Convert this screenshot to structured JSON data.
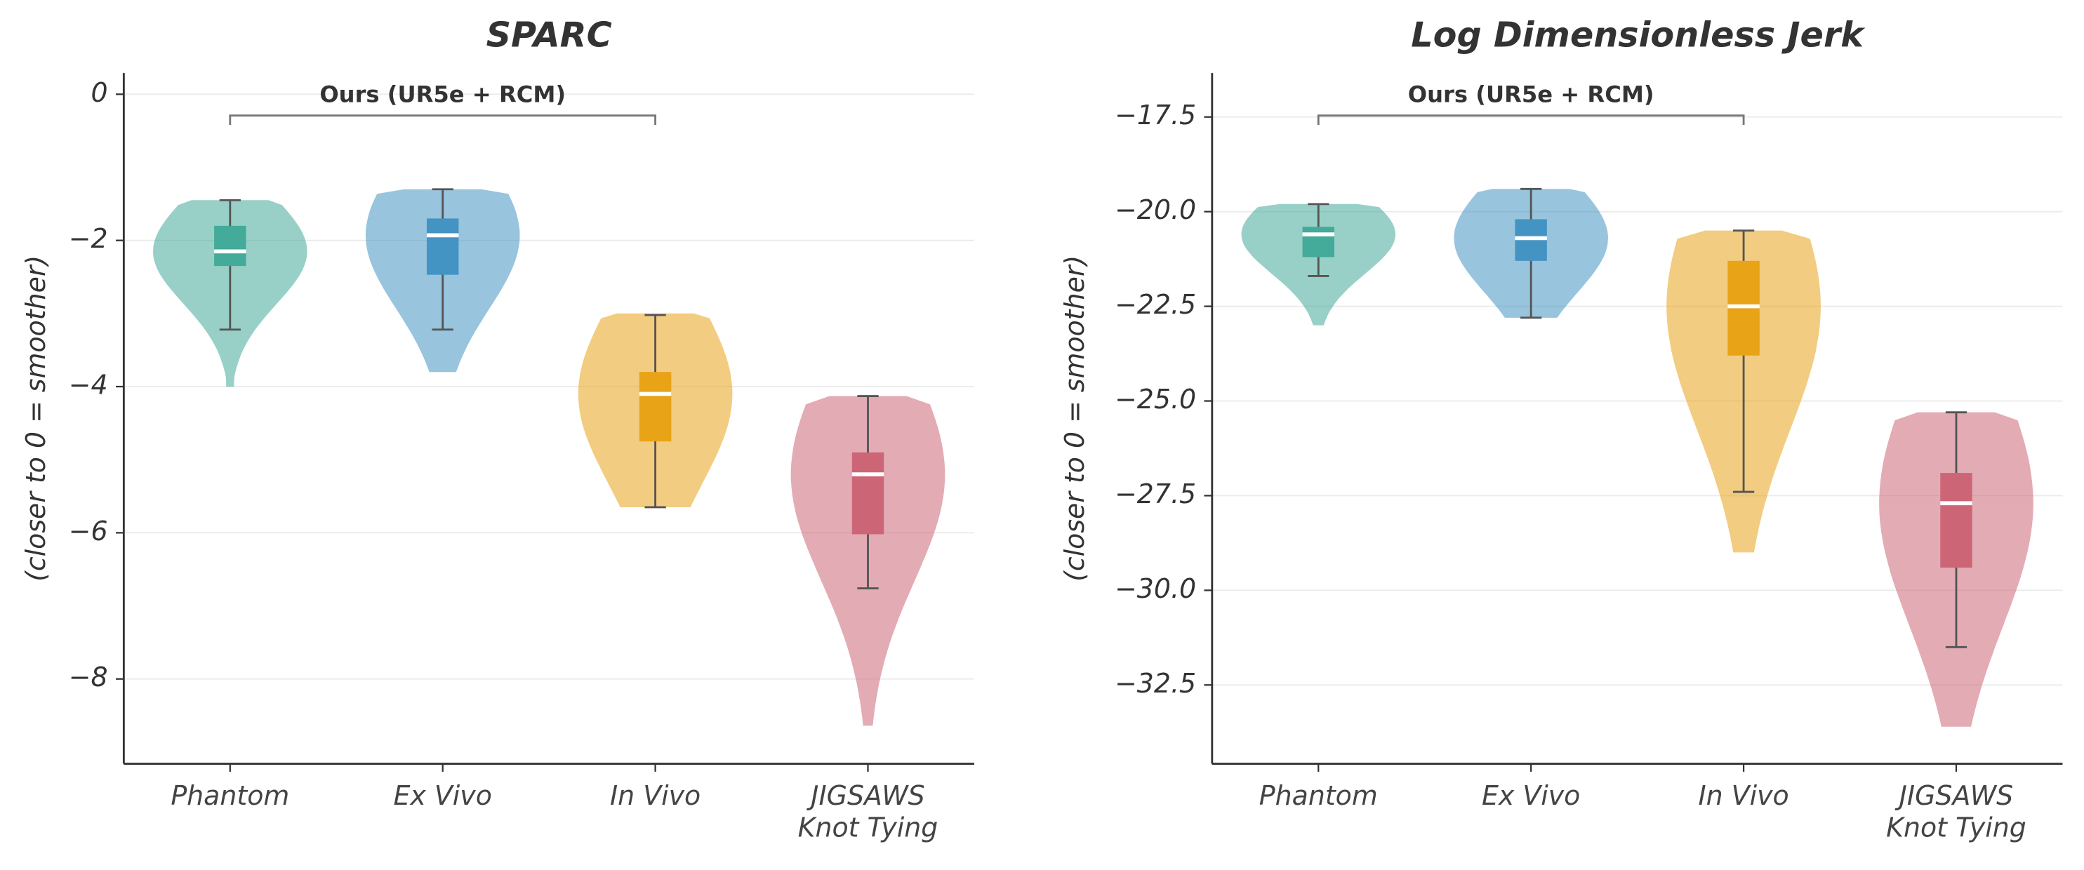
{
  "chart_data": [
    {
      "type": "violin",
      "title": "SPARC",
      "y_label": "(closer to 0 = smoother)",
      "annotation": "Ours (UR5e + RCM)",
      "categories": [
        "Phantom",
        "Ex Vivo",
        "In Vivo",
        "JIGSAWS\nKnot Tying"
      ],
      "ylim": [
        -9.16,
        0.29
      ],
      "yticks": [
        0,
        {
          "value": -2,
          "label": "−2"
        },
        {
          "value": -4,
          "label": "−4"
        },
        {
          "value": -6,
          "label": "−6"
        },
        {
          "value": -8,
          "label": "−8"
        }
      ],
      "grid": true,
      "boxes": [
        {
          "color": "#44aa99",
          "violin_max": -1.45,
          "violin_min": -4.0,
          "whisker_high": -1.45,
          "q3": -1.8,
          "median": -2.15,
          "q1": -2.35,
          "whisker_low": -3.22
        },
        {
          "color": "#4393c3",
          "violin_max": -1.3,
          "violin_min": -3.8,
          "whisker_high": -1.3,
          "q3": -1.7,
          "median": -1.93,
          "q1": -2.47,
          "whisker_low": -3.22
        },
        {
          "color": "#e8a317",
          "violin_max": -3.0,
          "violin_min": -5.65,
          "whisker_high": -3.02,
          "q3": -3.8,
          "median": -4.1,
          "q1": -4.75,
          "whisker_low": -5.65
        },
        {
          "color": "#cc6677",
          "violin_max": -4.13,
          "violin_min": -8.64,
          "whisker_high": -4.13,
          "q3": -4.9,
          "median": -5.2,
          "q1": -6.02,
          "whisker_low": -6.76
        }
      ]
    },
    {
      "type": "violin",
      "title": "Log Dimensionless Jerk",
      "y_label": "(closer to 0 = smoother)",
      "annotation": "Ours (UR5e + RCM)",
      "categories": [
        "Phantom",
        "Ex Vivo",
        "In Vivo",
        "JIGSAWS\nKnot Tying"
      ],
      "ylim": [
        -34.58,
        -16.34
      ],
      "yticks": [
        {
          "value": -17.5,
          "label": "−17.5"
        },
        {
          "value": -20,
          "label": "−20.0"
        },
        {
          "value": -22.5,
          "label": "−22.5"
        },
        {
          "value": -25,
          "label": "−25.0"
        },
        {
          "value": -27.5,
          "label": "−27.5"
        },
        {
          "value": -30,
          "label": "−30.0"
        },
        {
          "value": -32.5,
          "label": "−32.5"
        }
      ],
      "grid": true,
      "boxes": [
        {
          "color": "#44aa99",
          "violin_max": -19.8,
          "violin_min": -23.0,
          "whisker_high": -19.8,
          "q3": -20.4,
          "median": -20.6,
          "q1": -21.2,
          "whisker_low": -21.7
        },
        {
          "color": "#4393c3",
          "violin_max": -19.4,
          "violin_min": -22.8,
          "whisker_high": -19.4,
          "q3": -20.2,
          "median": -20.7,
          "q1": -21.3,
          "whisker_low": -22.8
        },
        {
          "color": "#e8a317",
          "violin_max": -20.5,
          "violin_min": -29.0,
          "whisker_high": -20.5,
          "q3": -21.3,
          "median": -22.5,
          "q1": -23.8,
          "whisker_low": -27.4
        },
        {
          "color": "#cc6677",
          "violin_max": -25.3,
          "violin_min": -33.6,
          "whisker_high": -25.3,
          "q3": -26.9,
          "median": -27.7,
          "q1": -29.4,
          "whisker_low": -31.5
        }
      ]
    }
  ]
}
